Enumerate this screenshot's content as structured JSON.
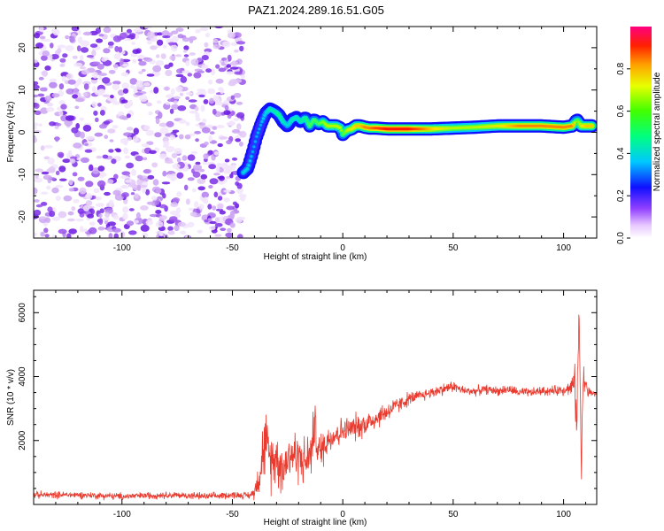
{
  "figure_title": "PAZ1.2024.289.16.51.G05",
  "colors": {
    "snr_line": "#e83a2e",
    "spectrogram_points": "#6a16e0",
    "band_core": "#d83030",
    "band_mid": "#20c0e8",
    "band_edge": "#2a10c8",
    "axis": "#000000"
  },
  "chart_data": [
    {
      "type": "heatmap",
      "title": "PAZ1.2024.289.16.51.G05",
      "xlabel": "Height of straight line (km)",
      "ylabel": "Frequency (Hz)",
      "xlim": [
        -140,
        115
      ],
      "ylim": [
        -25,
        25
      ],
      "xticks": [
        -100,
        -50,
        0,
        50,
        100
      ],
      "yticks": [
        -20,
        -10,
        0,
        10,
        20
      ],
      "colorbar": {
        "label": "Normalized spectral amplitude",
        "range": [
          0,
          1
        ],
        "ticks": [
          "0.0",
          "0.2",
          "0.4",
          "0.6",
          "0.8"
        ],
        "colormap": "rainbow (white-violet-blue-cyan-green-yellow-red-magenta)"
      },
      "grid": false,
      "noise_region": {
        "x": [
          -140,
          -45
        ],
        "freq": [
          -25,
          25
        ],
        "description_level": "low amplitude scatter"
      },
      "dominant_frequency_track": {
        "x": [
          -45,
          -43,
          -41,
          -39,
          -37,
          -35,
          -33,
          -31,
          -29,
          -27,
          -25,
          -23,
          -21,
          -19,
          -17,
          -15,
          -13,
          -11,
          -9,
          -7,
          -5,
          -3,
          -1,
          0,
          2,
          4,
          6,
          8,
          10,
          12,
          15,
          20,
          30,
          40,
          50,
          60,
          70,
          80,
          90,
          100,
          104,
          106,
          108,
          110,
          113
        ],
        "freq": [
          -9.5,
          -8.5,
          -5,
          -1,
          2,
          4.5,
          5.5,
          5,
          4.2,
          2.5,
          1.5,
          3,
          3.5,
          2.5,
          3.5,
          1.5,
          3,
          2,
          2.5,
          1.5,
          1.5,
          1.5,
          1,
          -0.5,
          0.5,
          0.8,
          1.5,
          1.5,
          1.2,
          1,
          1,
          0.8,
          0.8,
          0.8,
          1,
          1.2,
          1.5,
          1.5,
          1.5,
          1.2,
          1.5,
          3,
          1.5,
          1.5,
          1.5
        ],
        "amplitude": [
          0.45,
          0.45,
          0.4,
          0.4,
          0.4,
          0.45,
          0.5,
          0.5,
          0.55,
          0.5,
          0.45,
          0.5,
          0.5,
          0.5,
          0.55,
          0.6,
          0.6,
          0.6,
          0.65,
          0.7,
          0.7,
          0.7,
          0.7,
          0.6,
          0.7,
          0.75,
          0.8,
          0.8,
          0.85,
          0.85,
          0.9,
          0.95,
          0.95,
          0.8,
          0.7,
          0.7,
          0.75,
          0.85,
          0.85,
          0.85,
          0.85,
          0.6,
          0.75,
          0.8,
          0.8
        ]
      }
    },
    {
      "type": "line",
      "xlabel": "Height of straight line (km)",
      "ylabel": "SNR (10 * v/v)",
      "xlim": [
        -140,
        115
      ],
      "ylim": [
        0,
        6700
      ],
      "xticks": [
        -100,
        -50,
        0,
        50,
        100
      ],
      "yticks": [
        2000,
        4000,
        6000
      ],
      "grid": false,
      "series": [
        {
          "x": [
            -140,
            -120,
            -100,
            -80,
            -60,
            -50,
            -42,
            -40,
            -38,
            -36,
            -35,
            -33,
            -30,
            -27,
            -24,
            -20,
            -17,
            -14,
            -13,
            -11,
            -9,
            -6,
            -3,
            0,
            5,
            10,
            15,
            20,
            25,
            30,
            35,
            40,
            45,
            50,
            55,
            60,
            65,
            70,
            75,
            80,
            85,
            90,
            95,
            100,
            103,
            105,
            106,
            107,
            108,
            109,
            111,
            113,
            115
          ],
          "y": [
            300,
            300,
            250,
            300,
            250,
            300,
            280,
            400,
            900,
            1700,
            1900,
            1400,
            1500,
            1100,
            1600,
            1500,
            1300,
            1700,
            2600,
            1600,
            1800,
            2100,
            2200,
            2300,
            2400,
            2500,
            2700,
            2900,
            3100,
            3300,
            3400,
            3500,
            3600,
            3700,
            3550,
            3550,
            3600,
            3550,
            3600,
            3500,
            3500,
            3550,
            3550,
            3600,
            3650,
            3800,
            2600,
            6000,
            1800,
            4000,
            3500,
            3500,
            3400
          ],
          "spread": [
            150,
            150,
            150,
            150,
            150,
            150,
            150,
            300,
            800,
            1200,
            1400,
            1300,
            1200,
            1100,
            1100,
            1100,
            1000,
            1100,
            1200,
            900,
            800,
            700,
            650,
            600,
            550,
            550,
            500,
            450,
            350,
            300,
            250,
            250,
            250,
            250,
            200,
            200,
            200,
            200,
            200,
            200,
            200,
            200,
            200,
            250,
            300,
            800,
            1400,
            700,
            1400,
            600,
            250,
            200,
            200
          ]
        }
      ]
    }
  ]
}
